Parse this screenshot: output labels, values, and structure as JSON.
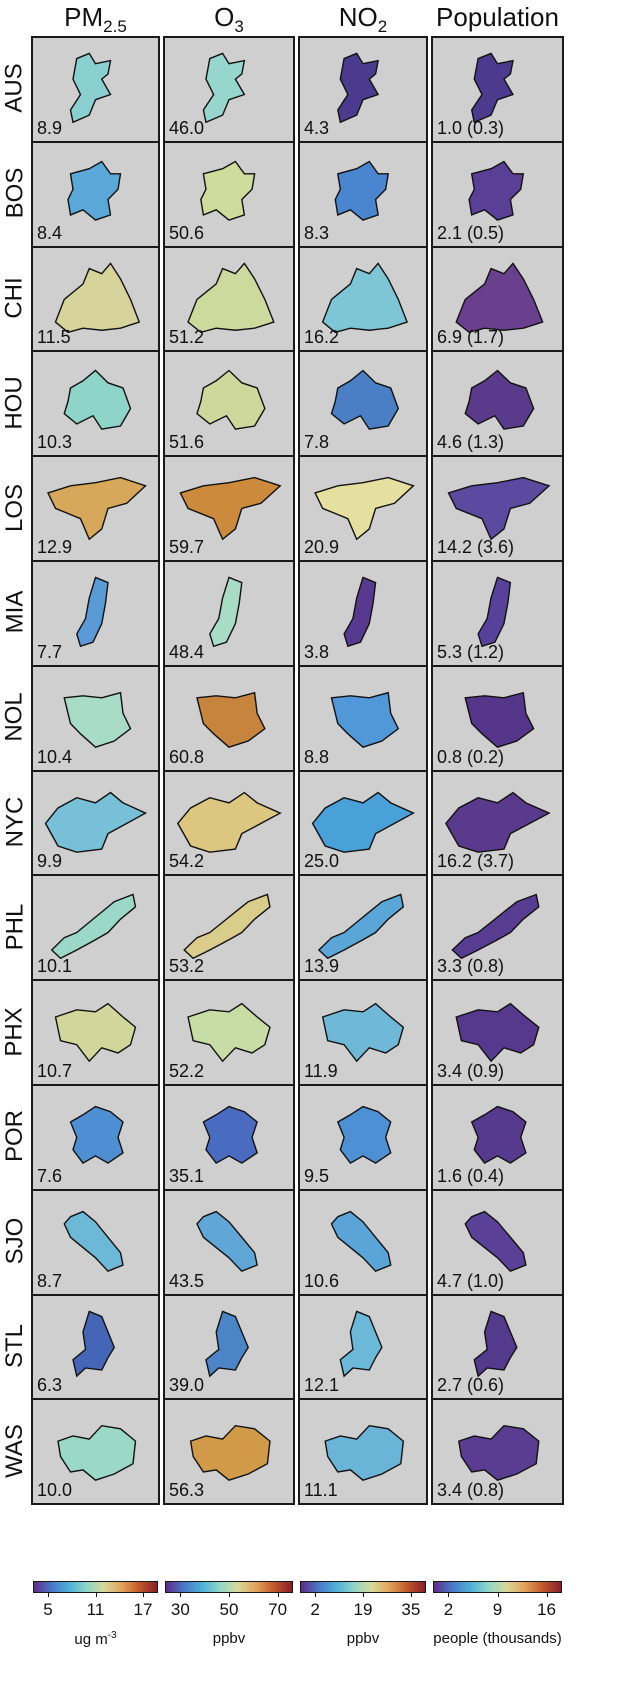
{
  "columns": [
    {
      "key": "pm25",
      "label_main": "PM",
      "label_sub": "2.5",
      "unit_main": "ug m",
      "unit_sup": "-3",
      "ticks": [
        "5",
        "11",
        "17"
      ],
      "cbar_colors": [
        "#5e2b88",
        "#4a78c8",
        "#4fb0d8",
        "#8fd6c8",
        "#d8d89a",
        "#e3a25a",
        "#c0582a",
        "#8a1e2a"
      ]
    },
    {
      "key": "o3",
      "label_main": "O",
      "label_sub": "3",
      "unit_main": "ppbv",
      "unit_sup": "",
      "ticks": [
        "30",
        "50",
        "70"
      ],
      "cbar_colors": [
        "#5e2b88",
        "#4a78c8",
        "#4fb0d8",
        "#8fd6c8",
        "#d8d89a",
        "#e3a25a",
        "#c0582a",
        "#8a1e2a"
      ]
    },
    {
      "key": "no2",
      "label_main": "NO",
      "label_sub": "2",
      "unit_main": "ppbv",
      "unit_sup": "",
      "ticks": [
        "2",
        "19",
        "35"
      ],
      "cbar_colors": [
        "#5e2b88",
        "#4a78c8",
        "#4fb0d8",
        "#8fd6c8",
        "#d8d89a",
        "#e3a25a",
        "#c0582a",
        "#8a1e2a"
      ]
    },
    {
      "key": "pop",
      "label_main": "Population",
      "label_sub": "",
      "unit_main": "people (thousands)",
      "unit_sup": "",
      "ticks": [
        "2",
        "9",
        "16"
      ],
      "cbar_colors": [
        "#5e2b88",
        "#4a78c8",
        "#4fb0d8",
        "#8fd6c8",
        "#d8d89a",
        "#e3a25a",
        "#c0582a",
        "#8a1e2a"
      ]
    }
  ],
  "rows": [
    {
      "city": "AUS",
      "values": [
        "8.9",
        "46.0",
        "4.3",
        "1.0 (0.3)"
      ],
      "colors": [
        "#8ad0d0",
        "#96d6cc",
        "#4c3a8e",
        "#4c3a8e"
      ]
    },
    {
      "city": "BOS",
      "values": [
        "8.4",
        "50.6",
        "8.3",
        "2.1 (0.5)"
      ],
      "colors": [
        "#5aa8d8",
        "#d0dc9c",
        "#4a86cf",
        "#5a3f96"
      ]
    },
    {
      "city": "CHI",
      "values": [
        "11.5",
        "51.2",
        "16.2",
        "6.9 (1.7)"
      ],
      "colors": [
        "#d6d49a",
        "#ccda9e",
        "#7ec6d6",
        "#6a3f8e"
      ]
    },
    {
      "city": "HOU",
      "values": [
        "10.3",
        "51.6",
        "7.8",
        "4.6 (1.3)"
      ],
      "colors": [
        "#8ed4c8",
        "#cfd89c",
        "#4a7fc6",
        "#5a3a8a"
      ]
    },
    {
      "city": "LOS",
      "values": [
        "12.9",
        "59.7",
        "20.9",
        "14.2 (3.6)"
      ],
      "colors": [
        "#d8a85a",
        "#cc8a3c",
        "#e6e0a0",
        "#5a4aa0"
      ]
    },
    {
      "city": "MIA",
      "values": [
        "7.7",
        "48.4",
        "3.8",
        "5.3 (1.2)"
      ],
      "colors": [
        "#5a9ad6",
        "#a8dcc4",
        "#573a90",
        "#57419a"
      ]
    },
    {
      "city": "NOL",
      "values": [
        "10.4",
        "60.8",
        "8.8",
        "0.8 (0.2)"
      ],
      "colors": [
        "#a8dcc6",
        "#c6843c",
        "#5098d8",
        "#55368a"
      ]
    },
    {
      "city": "NYC",
      "values": [
        "9.9",
        "54.2",
        "25.0",
        "16.2 (3.7)"
      ],
      "colors": [
        "#78c0d8",
        "#dcc680",
        "#4aa0d8",
        "#5a3a8c"
      ]
    },
    {
      "city": "PHL",
      "values": [
        "10.1",
        "53.2",
        "13.9",
        "3.3 (0.8)"
      ],
      "colors": [
        "#9cd8ca",
        "#dacd8c",
        "#5aa6d8",
        "#573c92"
      ]
    },
    {
      "city": "PHX",
      "values": [
        "10.7",
        "52.2",
        "11.9",
        "3.4 (0.9)"
      ],
      "colors": [
        "#d2d69a",
        "#c8dca6",
        "#70b8d8",
        "#56388c"
      ]
    },
    {
      "city": "POR",
      "values": [
        "7.6",
        "35.1",
        "9.5",
        "1.6 (0.4)"
      ],
      "colors": [
        "#4d8fd2",
        "#4a6cc0",
        "#4d90d4",
        "#563a8e"
      ]
    },
    {
      "city": "SJO",
      "values": [
        "8.7",
        "43.5",
        "10.6",
        "4.7 (1.0)"
      ],
      "colors": [
        "#6cb8d6",
        "#60a6d6",
        "#5aa4d8",
        "#5a4096"
      ]
    },
    {
      "city": "STL",
      "values": [
        "6.3",
        "39.0",
        "12.1",
        "2.7 (0.6)"
      ],
      "colors": [
        "#4566b6",
        "#4c84c8",
        "#6cb8d8",
        "#533a8c"
      ]
    },
    {
      "city": "WAS",
      "values": [
        "10.0",
        "56.3",
        "11.1",
        "3.4 (0.8)"
      ],
      "colors": [
        "#9ad8c8",
        "#d09a48",
        "#6ab4d8",
        "#5a3d92"
      ]
    }
  ]
}
